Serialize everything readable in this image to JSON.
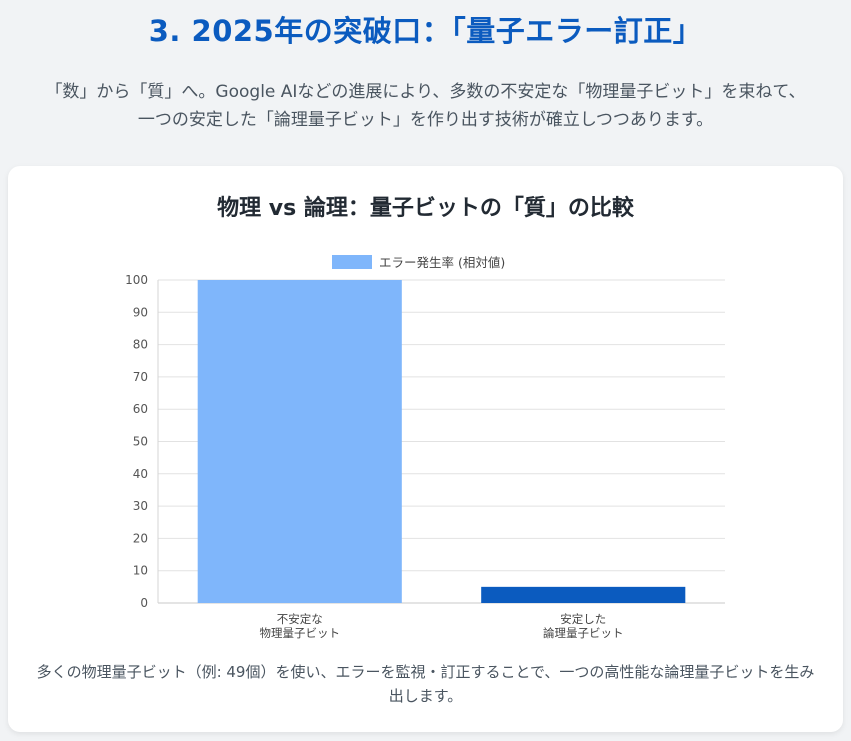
{
  "header": {
    "title": "3. 2025年の突破口：「量子エラー訂正」",
    "intro": "「数」から「質」へ。Google AIなどの進展により、多数の不安定な「物理量子ビット」を束ねて、一つの安定した「論理量子ビット」を作り出す技術が確立しつつあります。"
  },
  "card": {
    "title": "物理 vs 論理：量子ビットの「質」の比較",
    "caption": "多くの物理量子ビット（例: 49個）を使い、エラーを監視・訂正することで、一つの高性能な論理量子ビットを生み出します。"
  },
  "chart_data": {
    "type": "bar",
    "categories": [
      [
        "不安定な",
        "物理量子ビット"
      ],
      [
        "安定した",
        "論理量子ビット"
      ]
    ],
    "series": [
      {
        "name": "エラー発生率 (相対値)",
        "values": [
          100,
          5
        ],
        "colors": [
          "#7fb6fb",
          "#0b5bbf"
        ]
      }
    ],
    "ylim": [
      0,
      100
    ],
    "yticks": [
      0,
      10,
      20,
      30,
      40,
      50,
      60,
      70,
      80,
      90,
      100
    ],
    "grid": true,
    "legend_position": "top",
    "legend_color": "#7fb6fb"
  }
}
